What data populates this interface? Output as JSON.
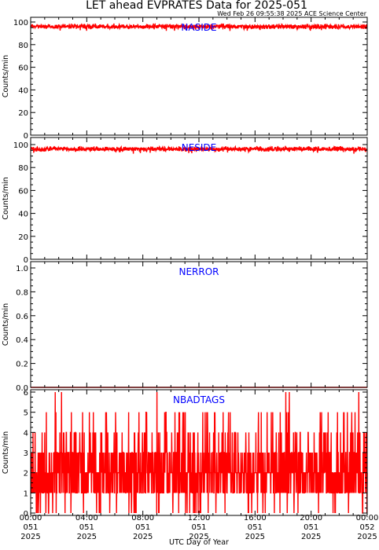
{
  "page": {
    "title": "LET ahead EVPRATES Data for 2025-051",
    "timestamp": "Wed Feb 26 09:55:38 2025 ACE Science Center",
    "xlabel": "UTC Day of Year"
  },
  "colors": {
    "series": "#ff0000",
    "panel_label": "#0000ff",
    "axes": "#000000",
    "background": "#ffffff"
  },
  "x_ticks": [
    {
      "time": "00:00",
      "doy": "051",
      "year": "2025"
    },
    {
      "time": "04:00",
      "doy": "051",
      "year": "2025"
    },
    {
      "time": "08:00",
      "doy": "051",
      "year": "2025"
    },
    {
      "time": "12:00",
      "doy": "051",
      "year": "2025"
    },
    {
      "time": "16:00",
      "doy": "051",
      "year": "2025"
    },
    {
      "time": "20:00",
      "doy": "051",
      "year": "2025"
    },
    {
      "time": "00:00",
      "doy": "052",
      "year": "2025"
    }
  ],
  "chart_data": [
    {
      "type": "line",
      "label": "NASIDE",
      "ylabel": "Counts/min",
      "x_unit": "hours UTC",
      "xlim": [
        0,
        24
      ],
      "ylim": [
        0,
        100
      ],
      "yticks": [
        0,
        20,
        40,
        60,
        80,
        100
      ],
      "series_summary": "1-minute samples, noisy near-constant",
      "min": 92,
      "max": 100,
      "typical": 96
    },
    {
      "type": "line",
      "label": "NESIDE",
      "ylabel": "Counts/min",
      "x_unit": "hours UTC",
      "xlim": [
        0,
        24
      ],
      "ylim": [
        0,
        100
      ],
      "yticks": [
        0,
        20,
        40,
        60,
        80,
        100
      ],
      "series_summary": "1-minute samples, noisy near-constant",
      "min": 92,
      "max": 100,
      "typical": 96
    },
    {
      "type": "line",
      "label": "NERROR",
      "ylabel": "Counts/min",
      "x_unit": "hours UTC",
      "xlim": [
        0,
        24
      ],
      "ylim": [
        0.0,
        1.0
      ],
      "yticks": [
        0.0,
        0.2,
        0.4,
        0.6,
        0.8,
        1.0
      ],
      "series_summary": "zero throughout",
      "min": 0,
      "max": 0,
      "typical": 0
    },
    {
      "type": "line",
      "label": "NBADTAGS",
      "ylabel": "Counts/min",
      "x_unit": "hours UTC",
      "xlim": [
        0,
        24
      ],
      "ylim": [
        0,
        6
      ],
      "yticks": [
        0,
        1,
        2,
        3,
        4,
        5,
        6
      ],
      "series_summary": "integer counts 0-6, mostly 1-3",
      "min": 0,
      "max": 6,
      "typical": 2,
      "spikes_to_6_hours": [
        1.75,
        2.2,
        9.0,
        18.2,
        18.45,
        23.4
      ]
    }
  ]
}
